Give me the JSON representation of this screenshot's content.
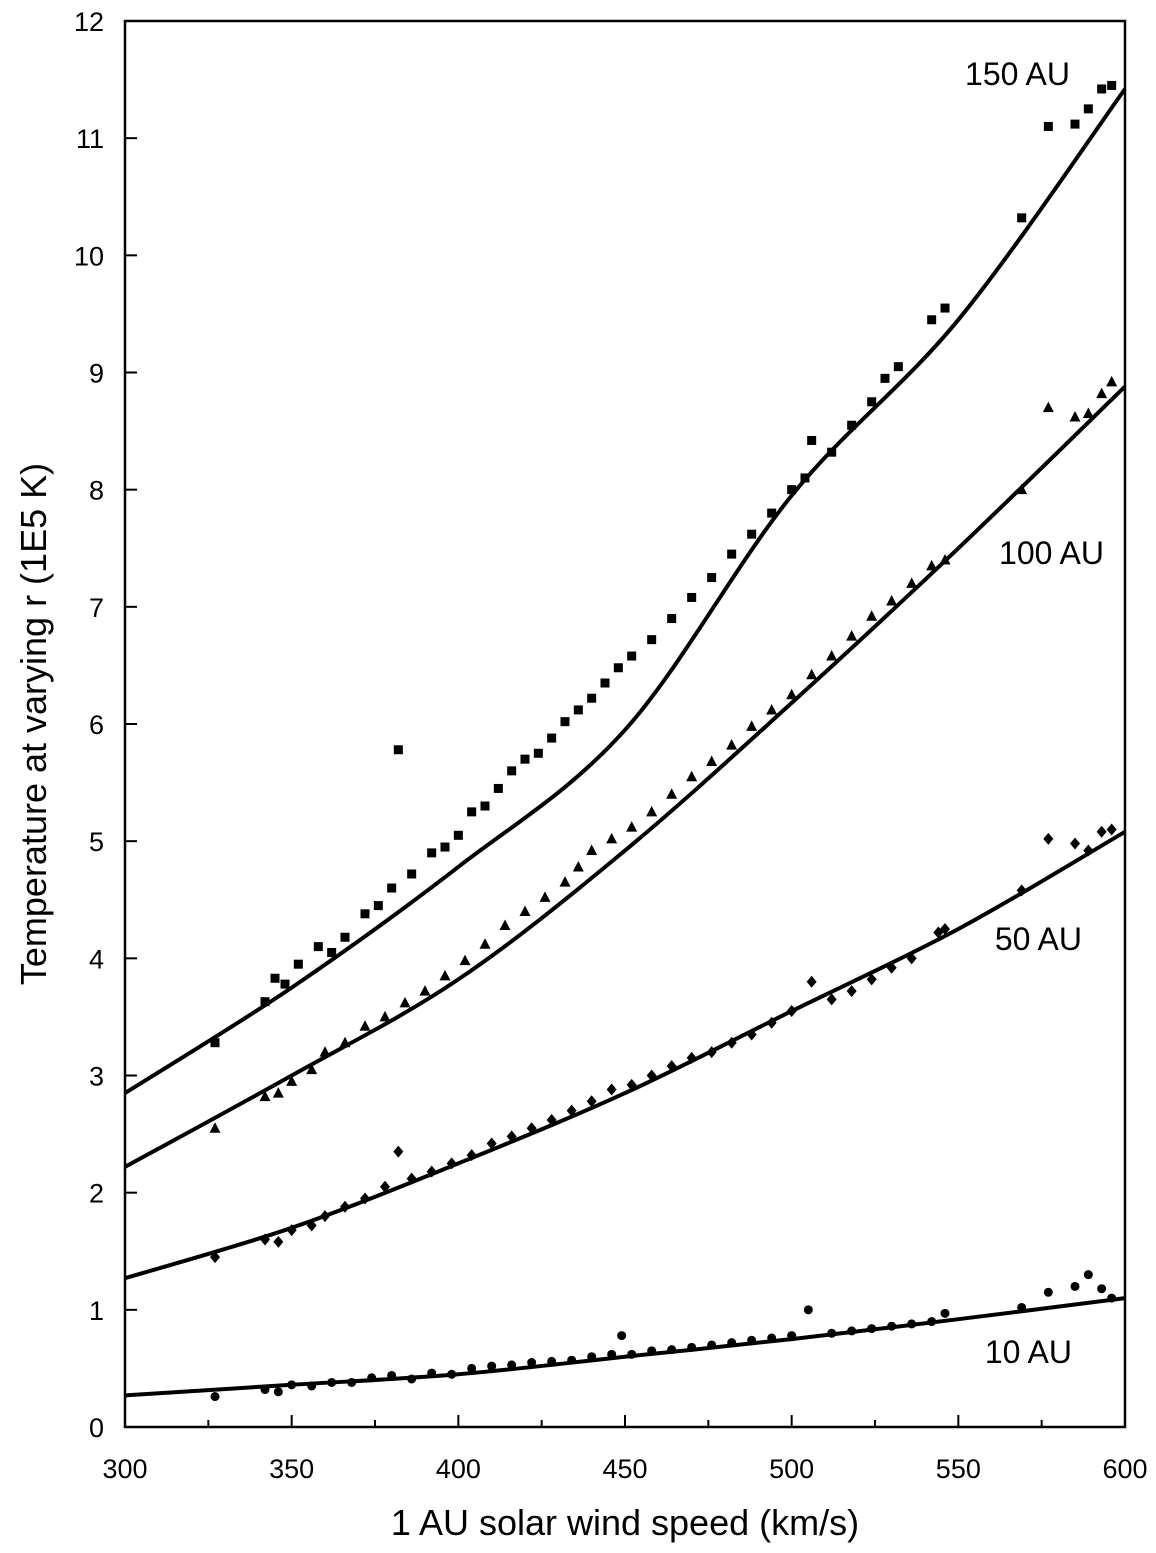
{
  "chart_data": {
    "type": "scatter",
    "xlabel": "1 AU solar wind speed (km/s)",
    "ylabel": "Temperature at varying r (1E5 K)",
    "xlim": [
      300,
      600
    ],
    "ylim": [
      0,
      12
    ],
    "xticks": [
      "300",
      "350",
      "400",
      "450",
      "500",
      "550",
      "600"
    ],
    "yticks": [
      "0",
      "1",
      "2",
      "3",
      "4",
      "5",
      "6",
      "7",
      "8",
      "9",
      "10",
      "11",
      "12"
    ],
    "grid": false,
    "marker_color": "#000000",
    "series": [
      {
        "name": "150 AU",
        "marker": "square",
        "fit": [
          [
            300,
            2.85
          ],
          [
            350,
            3.75
          ],
          [
            400,
            4.78
          ],
          [
            450,
            5.95
          ],
          [
            500,
            7.95
          ],
          [
            550,
            9.45
          ],
          [
            600,
            11.42
          ]
        ],
        "points": [
          [
            327,
            3.28
          ],
          [
            342,
            3.63
          ],
          [
            345,
            3.83
          ],
          [
            348,
            3.78
          ],
          [
            352,
            3.95
          ],
          [
            358,
            4.1
          ],
          [
            362,
            4.05
          ],
          [
            366,
            4.18
          ],
          [
            372,
            4.38
          ],
          [
            376,
            4.45
          ],
          [
            380,
            4.6
          ],
          [
            382,
            5.78
          ],
          [
            386,
            4.72
          ],
          [
            392,
            4.9
          ],
          [
            396,
            4.95
          ],
          [
            400,
            5.05
          ],
          [
            404,
            5.25
          ],
          [
            408,
            5.3
          ],
          [
            412,
            5.45
          ],
          [
            416,
            5.6
          ],
          [
            420,
            5.7
          ],
          [
            424,
            5.75
          ],
          [
            428,
            5.88
          ],
          [
            432,
            6.02
          ],
          [
            436,
            6.12
          ],
          [
            440,
            6.22
          ],
          [
            444,
            6.35
          ],
          [
            448,
            6.48
          ],
          [
            452,
            6.58
          ],
          [
            458,
            6.72
          ],
          [
            464,
            6.9
          ],
          [
            470,
            7.08
          ],
          [
            476,
            7.25
          ],
          [
            482,
            7.45
          ],
          [
            488,
            7.62
          ],
          [
            494,
            7.8
          ],
          [
            500,
            8.0
          ],
          [
            504,
            8.1
          ],
          [
            506,
            8.42
          ],
          [
            512,
            8.32
          ],
          [
            518,
            8.55
          ],
          [
            524,
            8.75
          ],
          [
            528,
            8.95
          ],
          [
            532,
            9.05
          ],
          [
            542,
            9.45
          ],
          [
            546,
            9.55
          ],
          [
            569,
            10.32
          ],
          [
            577,
            11.1
          ],
          [
            585,
            11.12
          ],
          [
            589,
            11.25
          ],
          [
            593,
            11.42
          ],
          [
            596,
            11.45
          ]
        ]
      },
      {
        "name": "100 AU",
        "marker": "triangle",
        "fit": [
          [
            300,
            2.22
          ],
          [
            350,
            3.0
          ],
          [
            400,
            3.82
          ],
          [
            450,
            4.92
          ],
          [
            500,
            6.18
          ],
          [
            550,
            7.5
          ],
          [
            600,
            8.88
          ]
        ],
        "points": [
          [
            327,
            2.55
          ],
          [
            342,
            2.82
          ],
          [
            346,
            2.85
          ],
          [
            350,
            2.95
          ],
          [
            356,
            3.05
          ],
          [
            360,
            3.2
          ],
          [
            366,
            3.28
          ],
          [
            372,
            3.42
          ],
          [
            378,
            3.5
          ],
          [
            384,
            3.62
          ],
          [
            390,
            3.72
          ],
          [
            396,
            3.85
          ],
          [
            402,
            3.98
          ],
          [
            408,
            4.12
          ],
          [
            414,
            4.28
          ],
          [
            420,
            4.4
          ],
          [
            426,
            4.52
          ],
          [
            432,
            4.65
          ],
          [
            436,
            4.78
          ],
          [
            440,
            4.92
          ],
          [
            446,
            5.02
          ],
          [
            452,
            5.12
          ],
          [
            458,
            5.25
          ],
          [
            464,
            5.4
          ],
          [
            470,
            5.55
          ],
          [
            476,
            5.68
          ],
          [
            482,
            5.82
          ],
          [
            488,
            5.98
          ],
          [
            494,
            6.12
          ],
          [
            500,
            6.25
          ],
          [
            506,
            6.42
          ],
          [
            512,
            6.58
          ],
          [
            518,
            6.75
          ],
          [
            524,
            6.92
          ],
          [
            530,
            7.05
          ],
          [
            536,
            7.2
          ],
          [
            542,
            7.35
          ],
          [
            546,
            7.4
          ],
          [
            569,
            8.0
          ],
          [
            577,
            8.7
          ],
          [
            585,
            8.62
          ],
          [
            589,
            8.65
          ],
          [
            593,
            8.82
          ],
          [
            596,
            8.92
          ]
        ]
      },
      {
        "name": "50 AU",
        "marker": "diamond",
        "fit": [
          [
            300,
            1.27
          ],
          [
            350,
            1.7
          ],
          [
            400,
            2.25
          ],
          [
            450,
            2.85
          ],
          [
            500,
            3.55
          ],
          [
            550,
            4.25
          ],
          [
            600,
            5.08
          ]
        ],
        "points": [
          [
            327,
            1.45
          ],
          [
            342,
            1.6
          ],
          [
            346,
            1.58
          ],
          [
            350,
            1.68
          ],
          [
            356,
            1.72
          ],
          [
            360,
            1.8
          ],
          [
            366,
            1.88
          ],
          [
            372,
            1.95
          ],
          [
            378,
            2.05
          ],
          [
            382,
            2.35
          ],
          [
            386,
            2.12
          ],
          [
            392,
            2.18
          ],
          [
            398,
            2.25
          ],
          [
            404,
            2.32
          ],
          [
            410,
            2.42
          ],
          [
            416,
            2.48
          ],
          [
            422,
            2.55
          ],
          [
            428,
            2.62
          ],
          [
            434,
            2.7
          ],
          [
            440,
            2.78
          ],
          [
            446,
            2.88
          ],
          [
            452,
            2.92
          ],
          [
            458,
            3.0
          ],
          [
            464,
            3.08
          ],
          [
            470,
            3.15
          ],
          [
            476,
            3.2
          ],
          [
            482,
            3.28
          ],
          [
            488,
            3.35
          ],
          [
            494,
            3.45
          ],
          [
            500,
            3.55
          ],
          [
            506,
            3.8
          ],
          [
            512,
            3.65
          ],
          [
            518,
            3.72
          ],
          [
            524,
            3.82
          ],
          [
            530,
            3.92
          ],
          [
            536,
            4.0
          ],
          [
            544,
            4.22
          ],
          [
            546,
            4.25
          ],
          [
            569,
            4.58
          ],
          [
            577,
            5.02
          ],
          [
            585,
            4.98
          ],
          [
            589,
            4.92
          ],
          [
            593,
            5.08
          ],
          [
            596,
            5.1
          ]
        ]
      },
      {
        "name": "10 AU",
        "marker": "circle",
        "fit": [
          [
            300,
            0.27
          ],
          [
            350,
            0.36
          ],
          [
            400,
            0.45
          ],
          [
            450,
            0.6
          ],
          [
            500,
            0.75
          ],
          [
            550,
            0.92
          ],
          [
            600,
            1.1
          ]
        ],
        "points": [
          [
            327,
            0.26
          ],
          [
            342,
            0.32
          ],
          [
            346,
            0.3
          ],
          [
            350,
            0.36
          ],
          [
            356,
            0.35
          ],
          [
            362,
            0.38
          ],
          [
            368,
            0.38
          ],
          [
            374,
            0.42
          ],
          [
            380,
            0.44
          ],
          [
            386,
            0.41
          ],
          [
            392,
            0.46
          ],
          [
            398,
            0.45
          ],
          [
            404,
            0.5
          ],
          [
            410,
            0.52
          ],
          [
            416,
            0.53
          ],
          [
            422,
            0.55
          ],
          [
            428,
            0.56
          ],
          [
            434,
            0.57
          ],
          [
            440,
            0.6
          ],
          [
            446,
            0.62
          ],
          [
            449,
            0.78
          ],
          [
            452,
            0.62
          ],
          [
            458,
            0.65
          ],
          [
            464,
            0.66
          ],
          [
            470,
            0.68
          ],
          [
            476,
            0.7
          ],
          [
            482,
            0.72
          ],
          [
            488,
            0.74
          ],
          [
            494,
            0.76
          ],
          [
            500,
            0.78
          ],
          [
            505,
            1.0
          ],
          [
            512,
            0.8
          ],
          [
            518,
            0.82
          ],
          [
            524,
            0.84
          ],
          [
            530,
            0.86
          ],
          [
            536,
            0.88
          ],
          [
            542,
            0.9
          ],
          [
            546,
            0.97
          ],
          [
            569,
            1.02
          ],
          [
            577,
            1.15
          ],
          [
            585,
            1.2
          ],
          [
            589,
            1.3
          ],
          [
            593,
            1.18
          ],
          [
            596,
            1.1
          ]
        ]
      }
    ]
  }
}
